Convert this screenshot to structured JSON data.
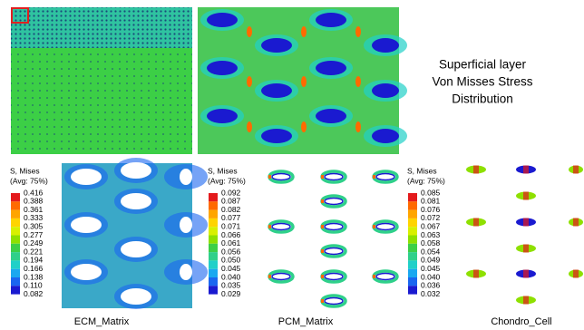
{
  "title": {
    "lines": [
      "Superficial layer",
      "Von Misses Stress",
      "Distribution"
    ]
  },
  "legends": [
    {
      "heading": "S, Mises",
      "avg": "(Avg: 75%)",
      "values": [
        "0.416",
        "0.388",
        "0.361",
        "0.333",
        "0.305",
        "0.277",
        "0.249",
        "0.221",
        "0.194",
        "0.166",
        "0.138",
        "0.110",
        "0.082"
      ]
    },
    {
      "heading": "S, Mises",
      "avg": "(Avg: 75%)",
      "values": [
        "0.092",
        "0.087",
        "0.082",
        "0.077",
        "0.071",
        "0.066",
        "0.061",
        "0.056",
        "0.050",
        "0.045",
        "0.040",
        "0.035",
        "0.029"
      ]
    },
    {
      "heading": "S, Mises",
      "avg": "(Avg: 75%)",
      "values": [
        "0.085",
        "0.081",
        "0.076",
        "0.072",
        "0.067",
        "0.063",
        "0.058",
        "0.054",
        "0.049",
        "0.045",
        "0.040",
        "0.036",
        "0.032"
      ]
    }
  ],
  "panels": [
    {
      "label": "ECM_Matrix"
    },
    {
      "label": "PCM_Matrix"
    },
    {
      "label": "Chondro_Cell"
    }
  ]
}
